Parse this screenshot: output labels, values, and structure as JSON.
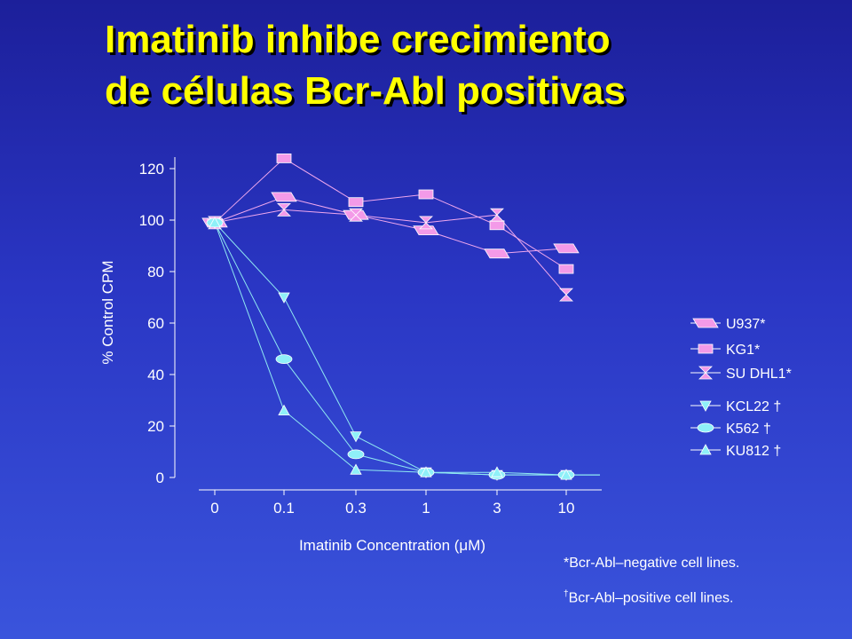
{
  "slide": {
    "title_line1": "Imatinib inhibe crecimiento",
    "title_line2": "de células Bcr-Abl positivas"
  },
  "chart_data": {
    "type": "line",
    "xlabel": "Imatinib Concentration (μM)",
    "ylabel": "% Control CPM",
    "categories": [
      "0",
      "0.1",
      "0.3",
      "1",
      "3",
      "10"
    ],
    "ylim": [
      0,
      120
    ],
    "yticks": [
      0,
      20,
      40,
      60,
      80,
      100,
      120
    ],
    "grid": false,
    "legend_position": "right",
    "series": [
      {
        "name": "U937*",
        "marker": "parallelogram",
        "color": "#f39ae8",
        "line_color": "#f0a8ee",
        "values": [
          99,
          109,
          102,
          96,
          87,
          89
        ]
      },
      {
        "name": "KG1*",
        "marker": "square",
        "color": "#f39ae8",
        "line_color": "#f0a8ee",
        "values": [
          99,
          124,
          107,
          110,
          98,
          81
        ]
      },
      {
        "name": "SU DHL1*",
        "marker": "hourglass",
        "color": "#f39ae8",
        "line_color": "#f0a8ee",
        "values": [
          99,
          104,
          102,
          99,
          102,
          71
        ]
      },
      {
        "name": "KCL22",
        "marker": "triangle-down",
        "color": "#8ff0f8",
        "line_color": "#8fe8f2",
        "values": [
          99,
          70,
          16,
          2,
          1,
          1
        ]
      },
      {
        "name": "K562",
        "marker": "ellipse",
        "color": "#8ff0f8",
        "line_color": "#8fe8f2",
        "values": [
          99,
          46,
          9,
          2,
          1,
          1
        ]
      },
      {
        "name": "KU812",
        "marker": "triangle-up",
        "color": "#8ff0f8",
        "line_color": "#8fe8f2",
        "values": [
          99,
          26,
          3,
          2,
          2,
          1
        ]
      }
    ],
    "legend_marks": [
      "U937*",
      "KG1*",
      "SU DHL1*",
      "KCL22 †",
      "K562 †",
      "KU812 †"
    ]
  },
  "footnotes": {
    "negative": "*Bcr-Abl–negative cell lines.",
    "positive_mark": "†",
    "positive": "Bcr-Abl–positive cell lines."
  }
}
